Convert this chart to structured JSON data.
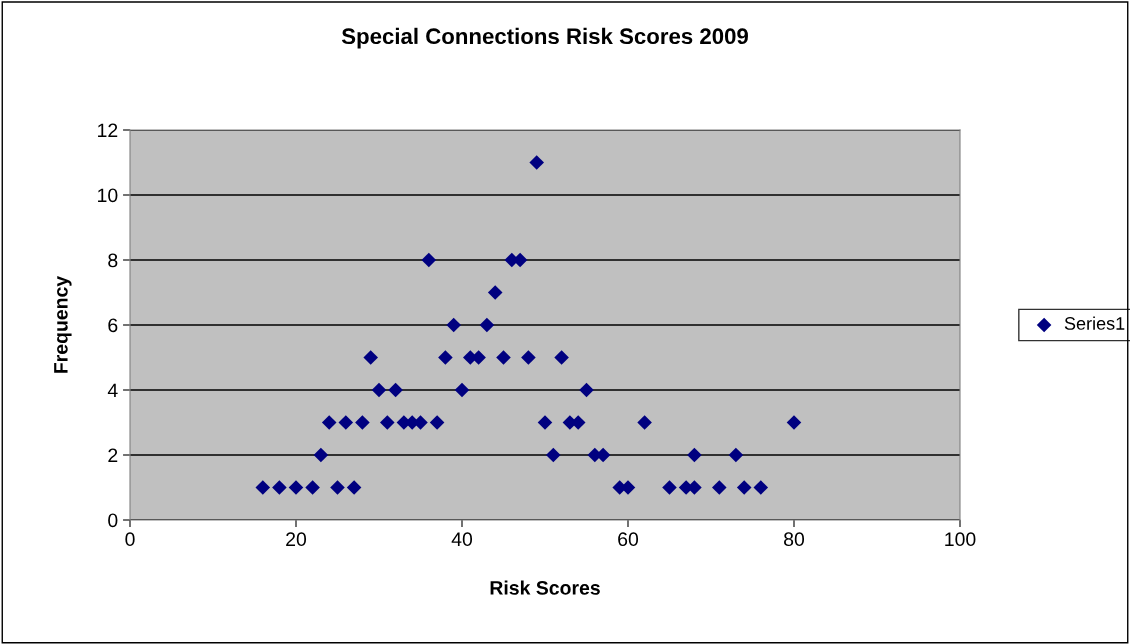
{
  "chart_data": {
    "type": "scatter",
    "title": "Special Connections Risk Scores 2009",
    "xlabel": "Risk Scores",
    "ylabel": "Frequency",
    "series": [
      {
        "name": "Series1",
        "color": "#000080",
        "x": [
          16,
          18,
          20,
          22,
          25,
          27,
          59,
          60,
          65,
          67,
          68,
          71,
          74,
          76,
          23,
          51,
          56,
          57,
          68,
          73,
          24,
          26,
          28,
          31,
          33,
          34,
          35,
          37,
          50,
          53,
          54,
          62,
          80,
          30,
          32,
          40,
          55,
          29,
          38,
          41,
          42,
          45,
          48,
          52,
          39,
          43,
          44,
          36,
          46,
          47,
          49
        ],
        "values": [
          1,
          1,
          1,
          1,
          1,
          1,
          1,
          1,
          1,
          1,
          1,
          1,
          1,
          1,
          2,
          2,
          2,
          2,
          2,
          2,
          3,
          3,
          3,
          3,
          3,
          3,
          3,
          3,
          3,
          3,
          3,
          3,
          3,
          4,
          4,
          4,
          4,
          5,
          5,
          5,
          5,
          5,
          5,
          5,
          6,
          6,
          7,
          8,
          8,
          8,
          11
        ]
      }
    ],
    "xlim": [
      0,
      100
    ],
    "xticks": [
      0,
      20,
      40,
      60,
      80,
      100
    ],
    "ylim": [
      0,
      12
    ],
    "yticks": [
      0,
      2,
      4,
      6,
      8,
      10,
      12
    ],
    "grid": "y",
    "legend": "right",
    "marker": "diamond"
  }
}
